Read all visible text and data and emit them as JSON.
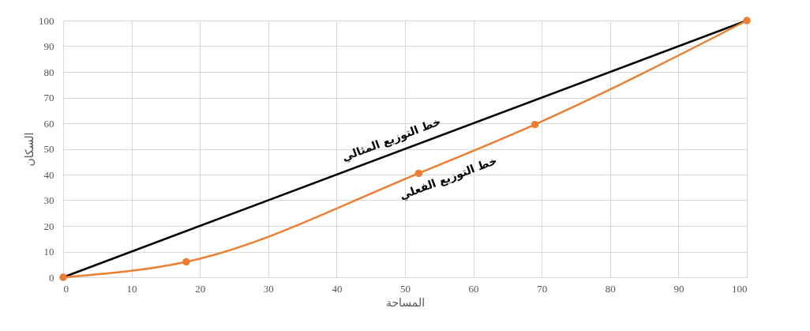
{
  "chart_data": {
    "type": "line",
    "xlabel": "المساحة",
    "ylabel": "السكان",
    "series": [
      {
        "color": "#000000",
        "x": [
          0,
          100
        ],
        "values": [
          0,
          100
        ],
        "marker": "none"
      },
      {
        "color": "#ed7d31",
        "x": [
          0,
          18,
          52,
          69,
          100
        ],
        "values": [
          0,
          6,
          40.5,
          59.5,
          100
        ],
        "marker": "circle"
      }
    ],
    "annotations": [
      "خط التوزيع المثالي",
      "خط التوزيع الفعلي"
    ],
    "xlim": [
      0,
      100
    ],
    "xticks": [
      0,
      10,
      20,
      30,
      40,
      50,
      60,
      70,
      80,
      90,
      100
    ],
    "ylim": [
      0,
      100
    ],
    "yticks": [
      0,
      10,
      20,
      30,
      40,
      50,
      60,
      70,
      80,
      90,
      100
    ],
    "grid": true,
    "line_style": "solid"
  }
}
